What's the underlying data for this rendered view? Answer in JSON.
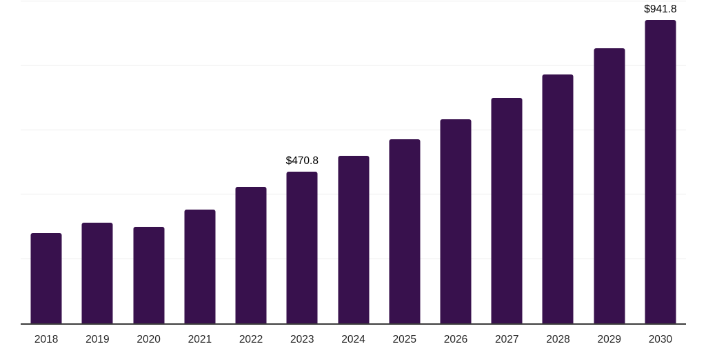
{
  "chart_data": {
    "type": "bar",
    "title": "",
    "xlabel": "",
    "ylabel": "",
    "categories": [
      "2018",
      "2019",
      "2020",
      "2021",
      "2022",
      "2023",
      "2024",
      "2025",
      "2026",
      "2027",
      "2028",
      "2029",
      "2030"
    ],
    "values": [
      279.8,
      313.0,
      300.2,
      353.7,
      425.0,
      470.8,
      520.7,
      572.7,
      633.5,
      699.9,
      772.7,
      854.6,
      941.8
    ],
    "point_labels": [
      "",
      "",
      "",
      "",
      "",
      "$470.8",
      "",
      "",
      "",
      "",
      "",
      "",
      "$941.8"
    ],
    "ylim": [
      0,
      1000
    ],
    "gridline_values": [
      200,
      400,
      600,
      800,
      1000
    ],
    "grid": "horizontal-only",
    "legend": "none",
    "y_tick_labels_visible": false,
    "bar_color": "#38114d",
    "axis_line_color": "#3c3c3c",
    "gridline_color": "#ededed",
    "label_color": "#000000",
    "tick_label_color": "#262626"
  }
}
